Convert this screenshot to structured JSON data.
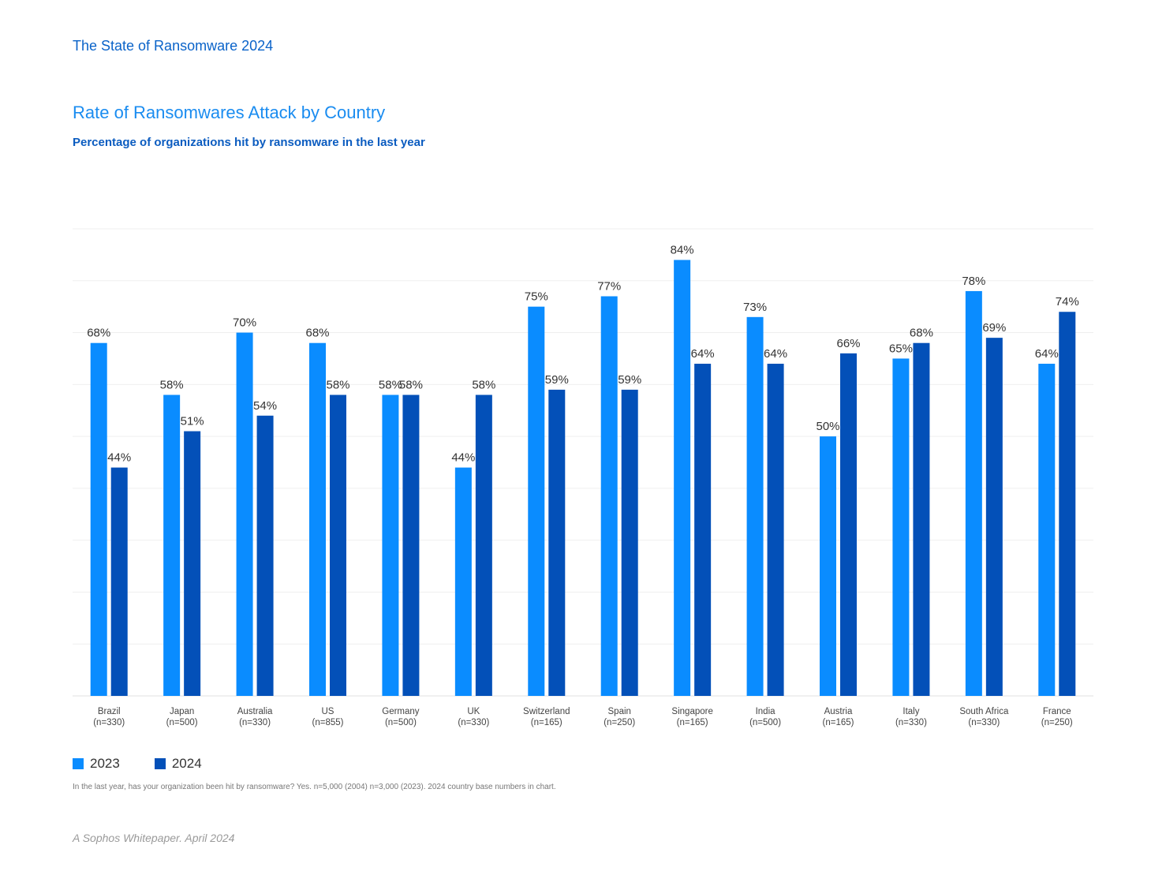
{
  "header": {
    "report_title": "The State of Ransomware 2024"
  },
  "chart_data": {
    "type": "bar",
    "title": "Rate of Ransomwares Attack by Country",
    "subtitle": "Percentage of organizations hit by ransomware in the last year",
    "categories": [
      "Brazil",
      "Japan",
      "Australia",
      "US",
      "Germany",
      "UK",
      "Switzerland",
      "Spain",
      "Singapore",
      "India",
      "Austria",
      "Italy",
      "South Africa",
      "France"
    ],
    "category_bases": [
      "(n=330)",
      "(n=500)",
      "(n=330)",
      "(n=855)",
      "(n=500)",
      "(n=330)",
      "(n=165)",
      "(n=250)",
      "(n=165)",
      "(n=500)",
      "(n=165)",
      "(n=330)",
      "(n=330)",
      "(n=250)"
    ],
    "series": [
      {
        "name": "2023",
        "color": "#0a8cff",
        "values": [
          68,
          58,
          70,
          68,
          58,
          44,
          75,
          77,
          84,
          73,
          50,
          65,
          78,
          64
        ]
      },
      {
        "name": "2024",
        "color": "#0350b8",
        "values": [
          44,
          51,
          54,
          58,
          58,
          58,
          59,
          59,
          64,
          64,
          66,
          68,
          69,
          74
        ]
      }
    ],
    "value_suffix": "%",
    "ylim": [
      0,
      90
    ],
    "grid": true,
    "legend_position": "bottom-left"
  },
  "footnote": "In the last year, has your organization been hit by ransomware? Yes. n=5,000 (2004) n=3,000 (2023). 2024 country base numbers in chart.",
  "footer": "A Sophos Whitepaper. April 2024"
}
